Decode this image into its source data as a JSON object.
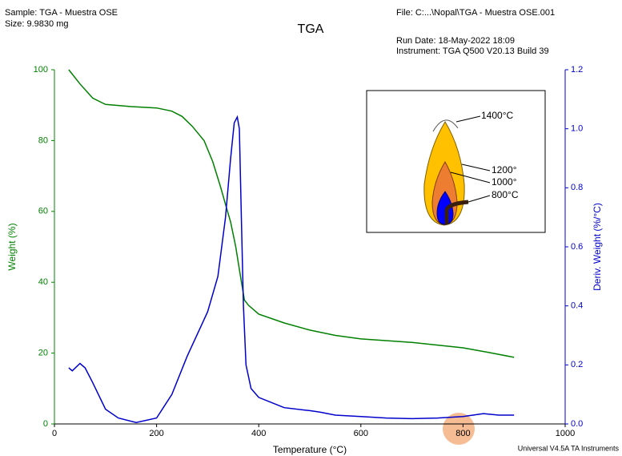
{
  "header": {
    "sample": "Sample: TGA - Muestra OSE",
    "size": "Size:  9.9830 mg",
    "file": "File: C:...\\Nopal\\TGA - Muestra OSE.001",
    "run_date": "Run Date: 18-May-2022 18:09",
    "instrument": "Instrument: TGA Q500 V20.13 Build 39"
  },
  "footer": "Universal V4.5A TA Instruments",
  "chart_data": {
    "type": "line",
    "title": "TGA",
    "x_label": "Temperature (°C)",
    "y_label": "Weight (%)",
    "y2_label": "Deriv. Weight (%/°C)",
    "xlim": [
      0,
      1000
    ],
    "xticks": [
      0,
      200,
      400,
      600,
      800,
      1000
    ],
    "ylim": [
      0,
      100
    ],
    "yticks": [
      0,
      20,
      40,
      60,
      80,
      100
    ],
    "y2lim": [
      0,
      1.2
    ],
    "y2ticks": [
      {
        "value": 0,
        "label": "0.0"
      },
      0.2,
      0.4,
      0.6,
      0.8,
      {
        "value": 1,
        "label": "1.0"
      },
      1.2
    ],
    "series": [
      {
        "name": "Weight (%)",
        "color": "#008000",
        "x": [
          28,
          50,
          75,
          100,
          150,
          200,
          230,
          250,
          270,
          293,
          310,
          325,
          335,
          345,
          355,
          365,
          372,
          380,
          400,
          450,
          500,
          550,
          600,
          700,
          800,
          850,
          900
        ],
        "values": [
          100,
          96,
          92,
          90.2,
          89.6,
          89.2,
          88.3,
          86.8,
          84,
          80,
          74,
          67,
          62,
          57,
          50,
          41,
          35,
          33.5,
          31,
          28.5,
          26.5,
          25,
          24,
          23,
          21.5,
          20.2,
          18.8
        ]
      },
      {
        "name": "Deriv. Weight (%/°C)",
        "color": "#0000cc",
        "axis": "y2",
        "x": [
          28,
          35,
          50,
          60,
          75,
          100,
          125,
          160,
          200,
          230,
          260,
          300,
          320,
          335,
          345,
          352,
          358,
          362,
          366,
          370,
          375,
          385,
          400,
          450,
          500,
          520,
          550,
          600,
          650,
          700,
          750,
          800,
          840,
          870,
          900
        ],
        "values": [
          0.19,
          0.18,
          0.205,
          0.19,
          0.14,
          0.05,
          0.02,
          0.005,
          0.02,
          0.1,
          0.23,
          0.38,
          0.5,
          0.7,
          0.9,
          1.02,
          1.04,
          1.0,
          0.7,
          0.4,
          0.2,
          0.12,
          0.09,
          0.055,
          0.045,
          0.04,
          0.03,
          0.025,
          0.02,
          0.018,
          0.02,
          0.025,
          0.035,
          0.03,
          0.03
        ]
      }
    ],
    "annotations": [
      "1400°C",
      "1200°",
      "1000°",
      "800°C"
    ]
  }
}
